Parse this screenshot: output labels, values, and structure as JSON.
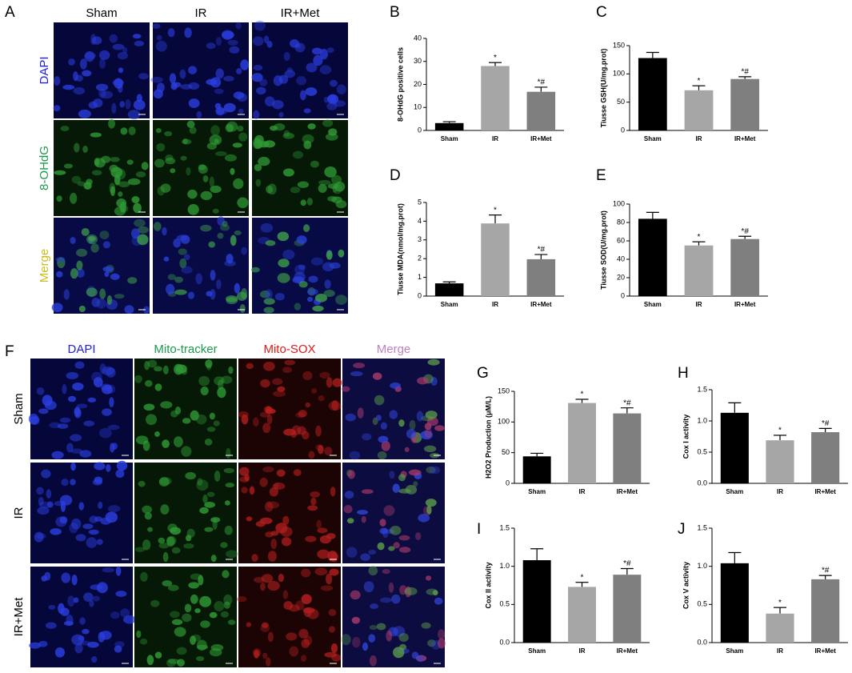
{
  "panel_A": {
    "letter": "A",
    "columns": [
      "Sham",
      "IR",
      "IR+Met"
    ],
    "rows": [
      "DAPI",
      "8-OHdG",
      "Merge"
    ]
  },
  "panel_F": {
    "letter": "F",
    "columns": [
      "DAPI",
      "Mito-tracker",
      "Mito-SOX",
      "Merge"
    ],
    "rows": [
      "Sham",
      "IR",
      "IR+Met"
    ]
  },
  "chart_data": [
    {
      "type": "bar",
      "panel": "B",
      "y_label": "8-OHdG positive cells",
      "categories": [
        "Sham",
        "IR",
        "IR+Met"
      ],
      "values": [
        3.2,
        28,
        16.8
      ],
      "errors": [
        0.6,
        1.5,
        2
      ],
      "annotations": [
        null,
        "*",
        "*#"
      ],
      "colors": [
        "#000000",
        "#a6a6a6",
        "#7f7f7f"
      ],
      "ylim": [
        0,
        40
      ],
      "yticks": [
        0,
        10,
        20,
        30,
        40
      ]
    },
    {
      "type": "bar",
      "panel": "C",
      "y_label": "Tiusse GSH(U/mg.prot)",
      "categories": [
        "Sham",
        "IR",
        "IR+Met"
      ],
      "values": [
        128,
        71,
        91
      ],
      "errors": [
        10,
        8,
        4
      ],
      "annotations": [
        null,
        "*",
        "*#"
      ],
      "colors": [
        "#000000",
        "#a6a6a6",
        "#7f7f7f"
      ],
      "ylim": [
        0,
        150
      ],
      "yticks": [
        0,
        50,
        100,
        150
      ]
    },
    {
      "type": "bar",
      "panel": "D",
      "y_label": "Tiusse MDA(nmol/mg.prot)",
      "categories": [
        "Sham",
        "IR",
        "IR+Met"
      ],
      "values": [
        0.68,
        3.88,
        1.97
      ],
      "errors": [
        0.08,
        0.45,
        0.25
      ],
      "annotations": [
        null,
        "*",
        "*#"
      ],
      "colors": [
        "#000000",
        "#a6a6a6",
        "#7f7f7f"
      ],
      "ylim": [
        0,
        5
      ],
      "yticks": [
        0,
        1,
        2,
        3,
        4,
        5
      ]
    },
    {
      "type": "bar",
      "panel": "E",
      "y_label": "Tiusse SOD(U/mg.prot)",
      "categories": [
        "Sham",
        "IR",
        "IR+Met"
      ],
      "values": [
        84,
        55,
        62
      ],
      "errors": [
        7,
        4,
        3
      ],
      "annotations": [
        null,
        "*",
        "*#"
      ],
      "colors": [
        "#000000",
        "#a6a6a6",
        "#7f7f7f"
      ],
      "ylim": [
        0,
        100
      ],
      "yticks": [
        0,
        20,
        40,
        60,
        80,
        100
      ]
    },
    {
      "type": "bar",
      "panel": "G",
      "y_label": "H2O2 Production (μM/L)",
      "categories": [
        "Sham",
        "IR",
        "IR+Met"
      ],
      "values": [
        44,
        131,
        114
      ],
      "errors": [
        5,
        6,
        9
      ],
      "annotations": [
        null,
        "*",
        "*#"
      ],
      "colors": [
        "#000000",
        "#a6a6a6",
        "#7f7f7f"
      ],
      "ylim": [
        0,
        150
      ],
      "yticks": [
        0,
        50,
        100,
        150
      ]
    },
    {
      "type": "bar",
      "panel": "H",
      "y_label": "Cox I activity",
      "categories": [
        "Sham",
        "IR",
        "IR+Met"
      ],
      "values": [
        1.13,
        0.69,
        0.82
      ],
      "errors": [
        0.16,
        0.08,
        0.06
      ],
      "annotations": [
        null,
        "*",
        "*#"
      ],
      "colors": [
        "#000000",
        "#a6a6a6",
        "#7f7f7f"
      ],
      "ylim": [
        0,
        1.5
      ],
      "yticks": [
        {
          "value": 0,
          "label": "0.0"
        },
        {
          "value": 0.5,
          "label": "0.5"
        },
        {
          "value": 1,
          "label": "1.0"
        },
        {
          "value": 1.5,
          "label": "1.5"
        }
      ]
    },
    {
      "type": "bar",
      "panel": "I",
      "y_label": "Cox II activity",
      "categories": [
        "Sham",
        "IR",
        "IR+Met"
      ],
      "values": [
        1.08,
        0.73,
        0.89
      ],
      "errors": [
        0.15,
        0.06,
        0.08
      ],
      "annotations": [
        null,
        "*",
        "*#"
      ],
      "colors": [
        "#000000",
        "#a6a6a6",
        "#7f7f7f"
      ],
      "ylim": [
        0,
        1.5
      ],
      "yticks": [
        {
          "value": 0,
          "label": "0.0"
        },
        {
          "value": 0.5,
          "label": "0.5"
        },
        {
          "value": 1,
          "label": "1.0"
        },
        {
          "value": 1.5,
          "label": "1.5"
        }
      ]
    },
    {
      "type": "bar",
      "panel": "J",
      "y_label": "Cox V activity",
      "categories": [
        "Sham",
        "IR",
        "IR+Met"
      ],
      "values": [
        1.04,
        0.38,
        0.83
      ],
      "errors": [
        0.14,
        0.08,
        0.05
      ],
      "annotations": [
        null,
        "*",
        "*#"
      ],
      "colors": [
        "#000000",
        "#a6a6a6",
        "#7f7f7f"
      ],
      "ylim": [
        0,
        1.5
      ],
      "yticks": [
        {
          "value": 0,
          "label": "0.0"
        },
        {
          "value": 0.5,
          "label": "0.5"
        },
        {
          "value": 1,
          "label": "1.0"
        },
        {
          "value": 1.5,
          "label": "1.5"
        }
      ]
    }
  ]
}
